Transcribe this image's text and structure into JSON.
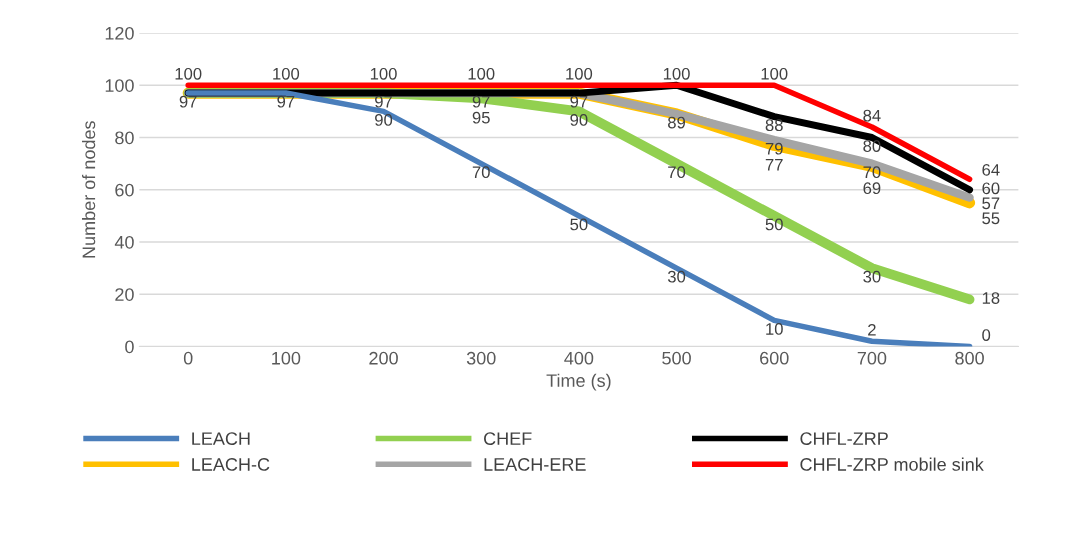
{
  "chart_data": {
    "type": "line",
    "xlabel": "Time (s)",
    "ylabel": "Number of nodes",
    "categories": [
      "0",
      "100",
      "200",
      "300",
      "400",
      "500",
      "600",
      "700",
      "800"
    ],
    "ylim": [
      0,
      120
    ],
    "yticks": [
      0,
      20,
      40,
      60,
      80,
      100,
      120
    ],
    "grid": "y",
    "legend": "bottom",
    "marker": "none",
    "series": [
      {
        "name": "LEACH",
        "color": "#4a7ebb",
        "values": [
          97,
          97,
          90,
          70,
          50,
          30,
          10,
          2,
          0
        ],
        "value_labels": [
          null,
          null,
          "90",
          "70",
          "50",
          "30",
          "10",
          "2",
          "0"
        ]
      },
      {
        "name": "LEACH-C",
        "color": "#ffc000",
        "values": [
          97,
          97,
          97,
          97,
          97,
          89,
          77,
          69,
          55
        ],
        "value_labels": [
          null,
          null,
          null,
          null,
          null,
          null,
          "77",
          "69",
          "55"
        ]
      },
      {
        "name": "CHEF",
        "color": "#92d050",
        "values": [
          97,
          97,
          97,
          95,
          90,
          70,
          50,
          30,
          18
        ],
        "value_labels": [
          null,
          null,
          null,
          "95",
          "90",
          "70",
          "50",
          "30",
          "18"
        ]
      },
      {
        "name": "LEACH-ERE",
        "color": "#a5a5a5",
        "values": [
          97,
          97,
          97,
          97,
          97,
          89,
          79,
          70,
          57
        ],
        "value_labels": [
          null,
          null,
          null,
          null,
          null,
          "89",
          "79",
          "70",
          "57"
        ]
      },
      {
        "name": "CHFL-ZRP",
        "color": "#000000",
        "values": [
          97,
          97,
          97,
          97,
          97,
          100,
          88,
          80,
          60
        ],
        "value_labels": [
          "97",
          "97",
          "97",
          "97",
          "97",
          null,
          "88",
          "80",
          "60"
        ]
      },
      {
        "name": "CHFL-ZRP mobile sink",
        "color": "#ff0000",
        "values": [
          100,
          100,
          100,
          100,
          100,
          100,
          100,
          84,
          64
        ],
        "value_labels": [
          "100",
          "100",
          "100",
          "100",
          "100",
          "100",
          "100",
          "84",
          "64"
        ]
      }
    ]
  }
}
